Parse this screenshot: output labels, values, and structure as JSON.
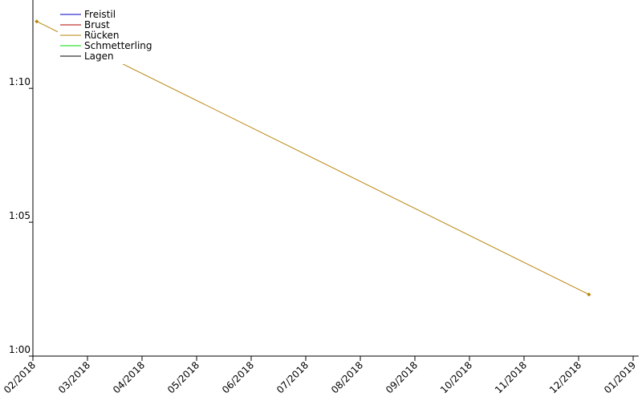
{
  "chart_data": {
    "type": "line",
    "series": [
      {
        "name": "Freistil",
        "color": "#0000c8",
        "x": [
          null
        ],
        "values": [
          null
        ]
      },
      {
        "name": "Brust",
        "color": "#b40000",
        "x": [
          null
        ],
        "values": [
          null
        ]
      },
      {
        "name": "Rücken",
        "color": "#b8860b",
        "x": [
          2.07,
          12.19
        ],
        "values": [
          72.5,
          62.3
        ]
      },
      {
        "name": "Schmetterling",
        "color": "#00dc00",
        "x": [
          null
        ],
        "values": [
          null
        ]
      },
      {
        "name": "Lagen",
        "color": "#000000",
        "x": [
          null
        ],
        "values": [
          null
        ]
      }
    ],
    "xlim": [
      2,
      13.1
    ],
    "xticks": [
      {
        "value": 2,
        "label": "02/2018"
      },
      {
        "value": 3,
        "label": "03/2018"
      },
      {
        "value": 4,
        "label": "04/2018"
      },
      {
        "value": 5,
        "label": "05/2018"
      },
      {
        "value": 6,
        "label": "06/2018"
      },
      {
        "value": 7,
        "label": "07/2018"
      },
      {
        "value": 8,
        "label": "08/2018"
      },
      {
        "value": 9,
        "label": "09/2018"
      },
      {
        "value": 10,
        "label": "10/2018"
      },
      {
        "value": 11,
        "label": "11/2018"
      },
      {
        "value": 12,
        "label": "12/2018"
      },
      {
        "value": 13,
        "label": "01/2019"
      }
    ],
    "ylim": [
      60,
      73.3
    ],
    "yticks": [
      {
        "value": 60,
        "label": "1:00"
      },
      {
        "value": 65,
        "label": "1:05"
      },
      {
        "value": 70,
        "label": "1:10"
      }
    ],
    "legend": "upper left"
  }
}
